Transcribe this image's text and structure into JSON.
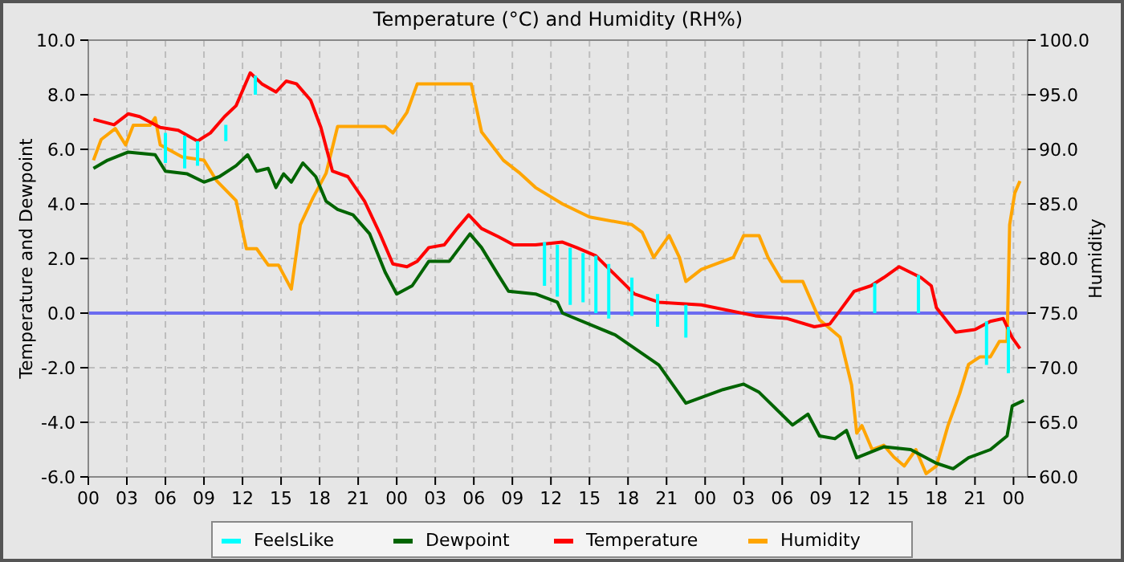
{
  "chart_data": {
    "type": "line",
    "title": "Temperature (°C) and Humidity (RH%)",
    "ylabel": "Temperature and Dewpoint",
    "y2label": "Humidity",
    "xlim": [
      0,
      73.1
    ],
    "xticks": [
      {
        "value": 0,
        "label": "00"
      },
      {
        "value": 3,
        "label": "03"
      },
      {
        "value": 6,
        "label": "06"
      },
      {
        "value": 9,
        "label": "09"
      },
      {
        "value": 12,
        "label": "12"
      },
      {
        "value": 15,
        "label": "15"
      },
      {
        "value": 18,
        "label": "18"
      },
      {
        "value": 21,
        "label": "21"
      },
      {
        "value": 24,
        "label": "00"
      },
      {
        "value": 27,
        "label": "03"
      },
      {
        "value": 30,
        "label": "06"
      },
      {
        "value": 33,
        "label": "09"
      },
      {
        "value": 36,
        "label": "12"
      },
      {
        "value": 39,
        "label": "15"
      },
      {
        "value": 42,
        "label": "18"
      },
      {
        "value": 45,
        "label": "21"
      },
      {
        "value": 48,
        "label": "00"
      },
      {
        "value": 51,
        "label": "03"
      },
      {
        "value": 54,
        "label": "06"
      },
      {
        "value": 57,
        "label": "09"
      },
      {
        "value": 60,
        "label": "12"
      },
      {
        "value": 63,
        "label": "15"
      },
      {
        "value": 66,
        "label": "18"
      },
      {
        "value": 69,
        "label": "21"
      },
      {
        "value": 72,
        "label": "00"
      }
    ],
    "ylim": [
      -6,
      10
    ],
    "yticks": [
      {
        "value": -6,
        "label": "-6.0"
      },
      {
        "value": -4,
        "label": "-4.0"
      },
      {
        "value": -2,
        "label": "-2.0"
      },
      {
        "value": 0,
        "label": "0.0"
      },
      {
        "value": 2,
        "label": "2.0"
      },
      {
        "value": 4,
        "label": "4.0"
      },
      {
        "value": 6,
        "label": "6.0"
      },
      {
        "value": 8,
        "label": "8.0"
      },
      {
        "value": 10,
        "label": "10.0"
      }
    ],
    "y2lim": [
      60,
      100
    ],
    "y2ticks": [
      {
        "value": 60,
        "label": "60.0"
      },
      {
        "value": 65,
        "label": "65.0"
      },
      {
        "value": 70,
        "label": "70.0"
      },
      {
        "value": 75,
        "label": "75.0"
      },
      {
        "value": 80,
        "label": "80.0"
      },
      {
        "value": 85,
        "label": "85.0"
      },
      {
        "value": 90,
        "label": "90.0"
      },
      {
        "value": 95,
        "label": "95.0"
      },
      {
        "value": 100,
        "label": "100.0"
      }
    ],
    "grid": true,
    "legend": "bottom",
    "line_style": "solid",
    "marker": "none",
    "ref_lines": [
      {
        "axis": "y",
        "value": 0,
        "color": "#6b6bf0"
      }
    ],
    "series": [
      {
        "name": "FeelsLike",
        "color": "#00ffff",
        "x": [
          6,
          6,
          null,
          7.5,
          7.5,
          null,
          8.5,
          8.5,
          null,
          10.7,
          10.7,
          null,
          13,
          13,
          null,
          35.5,
          35.5,
          null,
          36.5,
          36.5,
          null,
          37.5,
          37.5,
          null,
          38.5,
          38.5,
          null,
          39.5,
          39.5,
          null,
          40.5,
          40.5,
          null,
          42.3,
          42.3,
          null,
          44.3,
          44.3,
          null,
          46.5,
          46.5,
          null,
          61.2,
          61.2,
          null,
          64.6,
          64.6,
          null,
          69.9,
          69.9,
          null,
          71.6,
          71.6
        ],
        "values": [
          6.6,
          5.5,
          null,
          6.5,
          5.3,
          null,
          6.3,
          5.4,
          null,
          6.9,
          6.3,
          null,
          8.7,
          8.0,
          null,
          2.6,
          1.0,
          null,
          2.5,
          0.6,
          null,
          2.4,
          0.3,
          null,
          2.2,
          0.4,
          null,
          2.1,
          0.0,
          null,
          1.8,
          -0.2,
          null,
          1.3,
          -0.1,
          null,
          0.7,
          -0.5,
          null,
          0.3,
          -0.9,
          null,
          1.1,
          0.0,
          null,
          1.4,
          0.0,
          null,
          -0.3,
          -1.9,
          null,
          -0.5,
          -2.2
        ]
      },
      {
        "name": "Dewpoint",
        "color": "#006400",
        "x": [
          0.4,
          1.5,
          3.1,
          5.2,
          6,
          7.7,
          9,
          10.2,
          11.5,
          12.4,
          13.1,
          14,
          14.6,
          15.2,
          15.8,
          16.7,
          17.7,
          18.5,
          19.4,
          20.6,
          21.9,
          23.1,
          24,
          25.2,
          26.5,
          28.1,
          29.7,
          30.6,
          31.9,
          32.7,
          34.8,
          36.5,
          36.9,
          41,
          44.4,
          46.5,
          49.4,
          51,
          52.2,
          53.5,
          54.8,
          56,
          56.9,
          58.1,
          59,
          59.8,
          61.9,
          64,
          66,
          67.3,
          68.5,
          70.2,
          71.5,
          71.9,
          72.8
        ],
        "values": [
          5.3,
          5.6,
          5.9,
          5.8,
          5.2,
          5.1,
          4.8,
          5.0,
          5.4,
          5.8,
          5.2,
          5.3,
          4.6,
          5.1,
          4.8,
          5.5,
          5.0,
          4.1,
          3.8,
          3.6,
          2.9,
          1.5,
          0.7,
          1.0,
          1.9,
          1.9,
          2.9,
          2.4,
          1.4,
          0.8,
          0.7,
          0.4,
          0.0,
          -0.8,
          -1.9,
          -3.3,
          -2.8,
          -2.6,
          -2.9,
          -3.5,
          -4.1,
          -3.7,
          -4.5,
          -4.6,
          -4.3,
          -5.3,
          -4.9,
          -5.0,
          -5.5,
          -5.7,
          -5.3,
          -5.0,
          -4.5,
          -3.4,
          -3.2
        ]
      },
      {
        "name": "Temperature",
        "color": "#ff0000",
        "x": [
          0.4,
          2,
          3.1,
          4,
          5.6,
          7,
          8.5,
          9.5,
          10.6,
          11.5,
          12.6,
          13.5,
          14.6,
          15.4,
          16.2,
          17.3,
          18.1,
          19,
          20.2,
          21.5,
          22.7,
          23.7,
          24.8,
          25.6,
          26.5,
          27.7,
          28.7,
          29.6,
          30.6,
          31.9,
          33.1,
          34.8,
          36.9,
          38,
          39.5,
          41,
          42.5,
          44.4,
          47.7,
          51.9,
          54.4,
          56.5,
          57.7,
          58.5,
          59.6,
          60.9,
          61.9,
          63.1,
          64.8,
          65.6,
          66,
          67.5,
          69,
          70.2,
          71.2,
          71.9,
          72.5
        ],
        "values": [
          7.1,
          6.9,
          7.3,
          7.2,
          6.8,
          6.7,
          6.3,
          6.6,
          7.2,
          7.6,
          8.8,
          8.4,
          8.1,
          8.5,
          8.4,
          7.8,
          6.8,
          5.2,
          5.0,
          4.1,
          2.9,
          1.8,
          1.7,
          1.9,
          2.4,
          2.5,
          3.1,
          3.6,
          3.1,
          2.8,
          2.5,
          2.5,
          2.6,
          2.4,
          2.1,
          1.4,
          0.7,
          0.4,
          0.3,
          -0.1,
          -0.2,
          -0.5,
          -0.4,
          0.1,
          0.8,
          1.0,
          1.3,
          1.7,
          1.3,
          1.0,
          0.2,
          -0.7,
          -0.6,
          -0.3,
          -0.2,
          -0.9,
          -1.3
        ]
      },
      {
        "name": "Humidity",
        "color": "#ffa500",
        "axis": "y2",
        "x": [
          0.4,
          1,
          2.1,
          2.9,
          3.5,
          4.8,
          5.2,
          5.6,
          7.3,
          9,
          10,
          11.5,
          12.3,
          13.1,
          14,
          14.8,
          15.8,
          16.5,
          17.5,
          18.5,
          19.4,
          21.5,
          23.1,
          23.7,
          24.8,
          25.6,
          28.5,
          29.8,
          30.6,
          32.3,
          33.5,
          34.8,
          36.9,
          39,
          42.3,
          43.1,
          44,
          45.2,
          46,
          46.5,
          47.7,
          50.2,
          51,
          52.2,
          52.9,
          54,
          55.6,
          56.9,
          58.5,
          59.4,
          59.8,
          60.2,
          61,
          61.9,
          62.7,
          63.5,
          64.4,
          65.2,
          66,
          66.9,
          67.8,
          68.5,
          69.4,
          70.2,
          70.9,
          71.5,
          71.7,
          72.1,
          72.5
        ],
        "values": [
          89.0,
          90.9,
          91.9,
          90.4,
          92.2,
          92.2,
          92.9,
          90.4,
          89.3,
          89.0,
          87.1,
          85.3,
          80.9,
          80.9,
          79.4,
          79.4,
          77.2,
          83.1,
          85.6,
          87.8,
          92.1,
          92.1,
          92.1,
          91.5,
          93.4,
          96.0,
          96.0,
          96.0,
          91.6,
          89.0,
          87.9,
          86.5,
          85.0,
          83.8,
          83.1,
          82.4,
          80.1,
          82.1,
          80.1,
          77.9,
          79.0,
          80.1,
          82.1,
          82.1,
          80.1,
          77.9,
          77.9,
          74.4,
          72.8,
          68.4,
          64.0,
          64.7,
          62.5,
          62.9,
          61.8,
          61.0,
          62.5,
          60.3,
          61.0,
          64.7,
          67.6,
          70.3,
          71.0,
          71.0,
          72.4,
          72.4,
          83.1,
          86.0,
          87.1
        ]
      }
    ]
  }
}
